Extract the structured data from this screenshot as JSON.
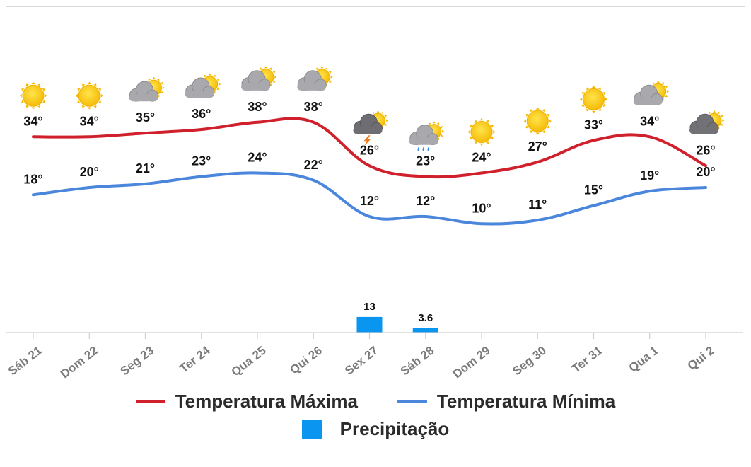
{
  "chart_data": {
    "type": "line",
    "categories": [
      "Sáb 21",
      "Dom 22",
      "Seg 23",
      "Ter 24",
      "Qua 25",
      "Qui 26",
      "Sex 27",
      "Sáb 28",
      "Dom 29",
      "Seg 30",
      "Ter 31",
      "Qua 1",
      "Qui 2"
    ],
    "series": [
      {
        "name": "Temperatura Máxima",
        "color": "#d0202b",
        "values": [
          34,
          34,
          35,
          36,
          38,
          38,
          26,
          23,
          24,
          27,
          33,
          34,
          26
        ]
      },
      {
        "name": "Temperatura Mínima",
        "color": "#4a86dc",
        "values": [
          18,
          20,
          21,
          23,
          24,
          22,
          12,
          12,
          10,
          11,
          15,
          19,
          20
        ]
      }
    ],
    "precipitation": {
      "name": "Precipitação",
      "color": "#0a95f0",
      "values": [
        null,
        null,
        null,
        null,
        null,
        null,
        13,
        3.6,
        null,
        null,
        null,
        null,
        null
      ],
      "labels": [
        "",
        "",
        "",
        "",
        "",
        "",
        "13",
        "3.6",
        "",
        "",
        "",
        "",
        ""
      ]
    },
    "value_labels": {
      "max": [
        "34°",
        "34°",
        "35°",
        "36°",
        "38°",
        "38°",
        "26°",
        "23°",
        "24°",
        "27°",
        "33°",
        "34°",
        "26°"
      ],
      "min": [
        "18°",
        "20°",
        "21°",
        "23°",
        "24°",
        "22°",
        "12°",
        "12°",
        "10°",
        "11°",
        "15°",
        "19°",
        "20°"
      ]
    },
    "weather_icons": [
      "sun-icon",
      "sun-icon",
      "partly-cloudy-icon",
      "partly-cloudy-icon",
      "partly-cloudy-icon",
      "partly-cloudy-icon",
      "thunderstorm-icon",
      "rain-icon",
      "sun-icon",
      "sun-icon",
      "sun-icon",
      "partly-cloudy-icon",
      "cloudy-icon"
    ],
    "legend_position": "bottom",
    "grid": false
  }
}
